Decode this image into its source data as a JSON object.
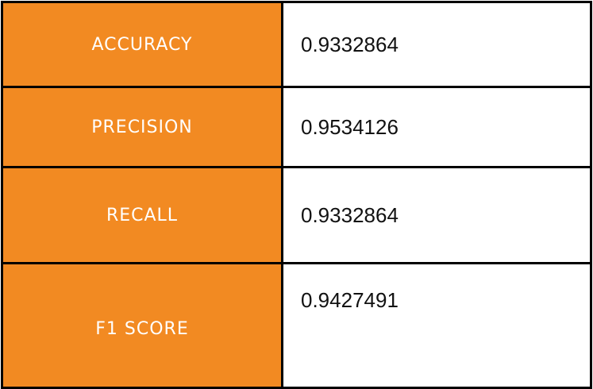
{
  "colors": {
    "label_background": "#f28a22",
    "label_text": "#ffffff",
    "value_background": "#ffffff",
    "border": "#000000"
  },
  "metrics": [
    {
      "label": "ACCURACY",
      "value": "0.9332864"
    },
    {
      "label": "PRECISION",
      "value": "0.9534126"
    },
    {
      "label": "RECALL",
      "value": "0.9332864"
    },
    {
      "label": "F1 SCORE",
      "value": "0.9427491"
    }
  ]
}
